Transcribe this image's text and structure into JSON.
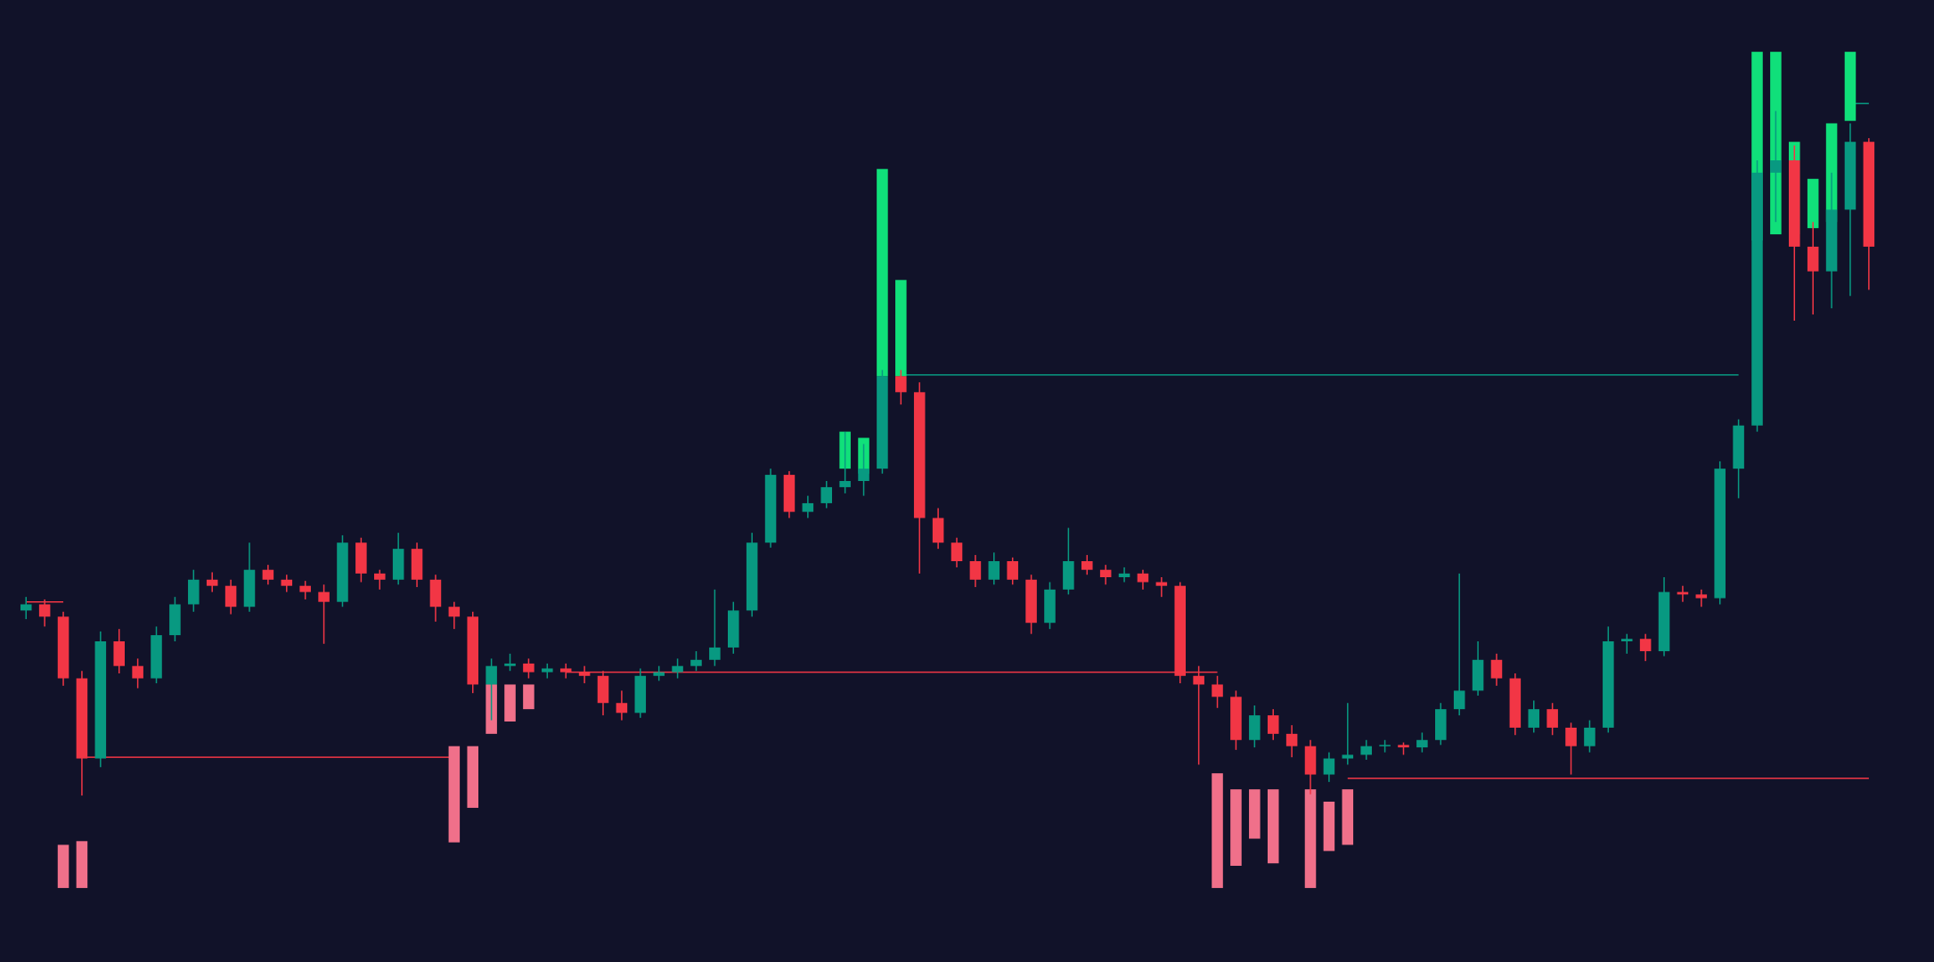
{
  "chart_data": {
    "type": "candlestick",
    "background": "#111229",
    "up_color": "#089981",
    "down_color": "#f23645",
    "bull_zone_color": "#10e07a",
    "bear_zone_color": "#f0708a",
    "xlim": [
      -1.4,
      102.5
    ],
    "ylim": [
      0,
      780
    ],
    "candles": [
      [
        285,
        296,
        278,
        290
      ],
      [
        290,
        294,
        272,
        280
      ],
      [
        280,
        284,
        224,
        230
      ],
      [
        230,
        236,
        135,
        165
      ],
      [
        165,
        268,
        158,
        260
      ],
      [
        260,
        270,
        234,
        240
      ],
      [
        240,
        246,
        222,
        230
      ],
      [
        230,
        272,
        226,
        265
      ],
      [
        265,
        296,
        260,
        290
      ],
      [
        290,
        318,
        284,
        310
      ],
      [
        310,
        316,
        300,
        305
      ],
      [
        305,
        310,
        282,
        288
      ],
      [
        288,
        340,
        284,
        318
      ],
      [
        318,
        322,
        306,
        310
      ],
      [
        310,
        314,
        300,
        305
      ],
      [
        305,
        309,
        294,
        300
      ],
      [
        300,
        306,
        258,
        292
      ],
      [
        292,
        346,
        288,
        340
      ],
      [
        340,
        344,
        308,
        315
      ],
      [
        315,
        318,
        302,
        310
      ],
      [
        310,
        348,
        306,
        335
      ],
      [
        335,
        340,
        304,
        310
      ],
      [
        310,
        314,
        276,
        288
      ],
      [
        288,
        292,
        270,
        280
      ],
      [
        280,
        284,
        218,
        225
      ],
      [
        225,
        246,
        196,
        240
      ],
      [
        240,
        250,
        236,
        242
      ],
      [
        242,
        246,
        230,
        235
      ],
      [
        235,
        242,
        230,
        238
      ],
      [
        238,
        242,
        230,
        235
      ],
      [
        235,
        240,
        226,
        232
      ],
      [
        232,
        236,
        200,
        210
      ],
      [
        210,
        220,
        196,
        202
      ],
      [
        202,
        238,
        198,
        232
      ],
      [
        232,
        240,
        228,
        235
      ],
      [
        235,
        246,
        230,
        240
      ],
      [
        240,
        252,
        236,
        245
      ],
      [
        245,
        302,
        240,
        255
      ],
      [
        255,
        292,
        250,
        285
      ],
      [
        285,
        348,
        280,
        340
      ],
      [
        340,
        400,
        336,
        395
      ],
      [
        395,
        398,
        360,
        365
      ],
      [
        365,
        378,
        360,
        372
      ],
      [
        372,
        390,
        368,
        385
      ],
      [
        385,
        430,
        380,
        390
      ],
      [
        390,
        420,
        378,
        400
      ],
      [
        400,
        480,
        396,
        475
      ],
      [
        475,
        480,
        452,
        462
      ],
      [
        462,
        470,
        315,
        360
      ],
      [
        360,
        368,
        335,
        340
      ],
      [
        340,
        344,
        320,
        325
      ],
      [
        325,
        330,
        304,
        310
      ],
      [
        310,
        332,
        306,
        325
      ],
      [
        325,
        328,
        306,
        310
      ],
      [
        310,
        314,
        266,
        275
      ],
      [
        275,
        308,
        270,
        302
      ],
      [
        302,
        352,
        298,
        325
      ],
      [
        325,
        330,
        314,
        318
      ],
      [
        318,
        322,
        306,
        312
      ],
      [
        312,
        320,
        308,
        315
      ],
      [
        315,
        318,
        302,
        308
      ],
      [
        308,
        312,
        296,
        305
      ],
      [
        305,
        308,
        226,
        232
      ],
      [
        232,
        240,
        160,
        225
      ],
      [
        225,
        232,
        206,
        215
      ],
      [
        215,
        220,
        172,
        180
      ],
      [
        180,
        208,
        174,
        200
      ],
      [
        200,
        205,
        180,
        185
      ],
      [
        185,
        192,
        166,
        175
      ],
      [
        175,
        180,
        136,
        152
      ],
      [
        152,
        170,
        146,
        165
      ],
      [
        165,
        210,
        160,
        168
      ],
      [
        168,
        180,
        164,
        175
      ],
      [
        175,
        180,
        170,
        176
      ],
      [
        176,
        178,
        168,
        174
      ],
      [
        174,
        186,
        170,
        180
      ],
      [
        180,
        210,
        176,
        205
      ],
      [
        205,
        315,
        200,
        220
      ],
      [
        220,
        260,
        216,
        245
      ],
      [
        245,
        250,
        224,
        230
      ],
      [
        230,
        234,
        184,
        190
      ],
      [
        190,
        212,
        186,
        205
      ],
      [
        205,
        210,
        184,
        190
      ],
      [
        190,
        194,
        152,
        175
      ],
      [
        175,
        196,
        170,
        190
      ],
      [
        190,
        272,
        186,
        260
      ],
      [
        260,
        266,
        250,
        262
      ],
      [
        262,
        266,
        244,
        252
      ],
      [
        252,
        312,
        248,
        300
      ],
      [
        300,
        305,
        292,
        298
      ],
      [
        298,
        302,
        288,
        295
      ],
      [
        295,
        406,
        290,
        400
      ],
      [
        400,
        440,
        376,
        435
      ],
      [
        435,
        650,
        430,
        640
      ],
      [
        640,
        690,
        600,
        650
      ],
      [
        650,
        662,
        520,
        580
      ],
      [
        580,
        600,
        525,
        560
      ],
      [
        560,
        640,
        530,
        610
      ],
      [
        610,
        680,
        540,
        665
      ],
      [
        665,
        668,
        545,
        580
      ]
    ],
    "levels": [
      {
        "from": 0,
        "to": 2,
        "price": 292,
        "color": "#f23645"
      },
      {
        "from": 3,
        "to": 23,
        "price": 166,
        "color": "#f23645"
      },
      {
        "from": 29,
        "to": 64,
        "price": 235,
        "color": "#f23645"
      },
      {
        "from": 47,
        "to": 92,
        "price": 476,
        "color": "#089981"
      },
      {
        "from": 71,
        "to": 99,
        "price": 149,
        "color": "#f23645"
      },
      {
        "from": 98,
        "to": 99,
        "price": 696,
        "color": "#089981"
      }
    ],
    "bull_zones": [
      [
        44,
        430,
        400
      ],
      [
        45,
        425,
        396
      ],
      [
        46,
        643,
        475
      ],
      [
        47,
        553,
        475
      ],
      [
        93,
        738,
        585
      ],
      [
        94,
        738,
        590
      ],
      [
        95,
        665,
        590
      ],
      [
        96,
        635,
        595
      ],
      [
        97,
        680,
        600
      ],
      [
        98,
        738,
        682
      ]
    ],
    "bear_zones": [
      [
        2,
        95,
        60
      ],
      [
        3,
        98,
        60
      ],
      [
        23,
        175,
        97
      ],
      [
        24,
        175,
        125
      ],
      [
        25,
        225,
        185
      ],
      [
        26,
        225,
        195
      ],
      [
        27,
        225,
        205
      ],
      [
        64,
        153,
        60
      ],
      [
        65,
        140,
        78
      ],
      [
        66,
        140,
        100
      ],
      [
        67,
        140,
        80
      ],
      [
        69,
        140,
        60
      ],
      [
        70,
        130,
        90
      ],
      [
        71,
        140,
        95
      ]
    ]
  }
}
